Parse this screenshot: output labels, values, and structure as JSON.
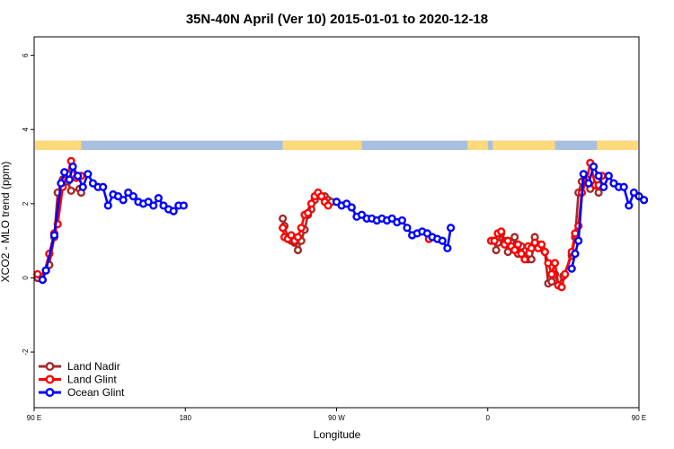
{
  "chart_data": {
    "type": "line",
    "title": "35N-40N April (Ver 10)   2015-01-01 to 2020-12-18",
    "xlabel": "Longitude",
    "ylabel": "XCO2 - MLO trend (ppm)",
    "xlim": [
      90,
      450
    ],
    "ylim": [
      -3.5,
      6.5
    ],
    "x_ticks": [
      {
        "value": 90,
        "label": "90 E"
      },
      {
        "value": 180,
        "label": "180"
      },
      {
        "value": 270,
        "label": "90 W"
      },
      {
        "value": 360,
        "label": "0"
      },
      {
        "value": 450,
        "label": "90 E"
      },
      {
        "value": 540,
        "label": "180"
      }
    ],
    "y_ticks": [
      {
        "value": -2,
        "label": "-2"
      },
      {
        "value": 0,
        "label": "0"
      },
      {
        "value": 2,
        "label": "2"
      },
      {
        "value": 4,
        "label": "4"
      },
      {
        "value": 6,
        "label": "6"
      }
    ],
    "land_ocean_strip": {
      "y_range": [
        3.45,
        3.7
      ],
      "land_color": "#ffd97a",
      "ocean_color": "#a8c0e0",
      "land_segments": [
        [
          90,
          118
        ],
        [
          100.5,
          110
        ],
        [
          238,
          285
        ],
        [
          348,
          360
        ],
        [
          363,
          400
        ],
        [
          425,
          484
        ],
        [
          450,
          486
        ]
      ]
    },
    "series": [
      {
        "name": "Land Nadir",
        "color": "#a52a2a",
        "points": [
          [
            92,
            0.0
          ],
          [
            97,
            0.2
          ],
          [
            99,
            0.35
          ],
          [
            102,
            1.1
          ],
          [
            104,
            2.3
          ],
          [
            107,
            2.65
          ],
          [
            110,
            2.6
          ],
          [
            112,
            2.35
          ],
          [
            117,
            2.4
          ],
          [
            118,
            2.3
          ],
          [
            238,
            1.6
          ],
          [
            239,
            1.4
          ],
          [
            241,
            1.1
          ],
          [
            243,
            1.0
          ],
          [
            245,
            0.95
          ],
          [
            247,
            0.75
          ],
          [
            249,
            1.0
          ],
          [
            251,
            1.3
          ],
          [
            253,
            1.7
          ],
          [
            255,
            1.85
          ],
          [
            257,
            2.1
          ],
          [
            259,
            2.25
          ],
          [
            261,
            2.2
          ],
          [
            263,
            2.2
          ],
          [
            265,
            2.1
          ],
          [
            267,
            2.05
          ],
          [
            364,
            1.0
          ],
          [
            365,
            0.75
          ],
          [
            366,
            0.95
          ],
          [
            368,
            1.2
          ],
          [
            370,
            1.0
          ],
          [
            372,
            0.7
          ],
          [
            374,
            0.95
          ],
          [
            376,
            1.1
          ],
          [
            378,
            0.65
          ],
          [
            380,
            0.85
          ],
          [
            382,
            0.55
          ],
          [
            384,
            0.5
          ],
          [
            386,
            0.5
          ],
          [
            388,
            1.1
          ],
          [
            390,
            0.9
          ],
          [
            392,
            0.8
          ],
          [
            394,
            0.7
          ],
          [
            396,
            -0.15
          ],
          [
            398,
            -0.1
          ],
          [
            400,
            0.1
          ],
          [
            402,
            -0.2
          ],
          [
            405,
            0.05
          ],
          [
            410,
            0.6
          ],
          [
            412,
            1.1
          ],
          [
            414,
            2.3
          ],
          [
            416,
            2.6
          ],
          [
            418,
            2.65
          ],
          [
            421,
            2.4
          ],
          [
            424,
            2.5
          ],
          [
            426,
            2.3
          ]
        ]
      },
      {
        "name": "Land Glint",
        "color": "#ff0000",
        "points": [
          [
            92,
            0.1
          ],
          [
            95,
            -0.05
          ],
          [
            99,
            0.65
          ],
          [
            102,
            1.2
          ],
          [
            104,
            1.45
          ],
          [
            107,
            2.45
          ],
          [
            110,
            2.8
          ],
          [
            112,
            3.15
          ],
          [
            115,
            2.7
          ],
          [
            118,
            2.75
          ],
          [
            238,
            1.35
          ],
          [
            239,
            1.1
          ],
          [
            241,
            1.05
          ],
          [
            243,
            1.15
          ],
          [
            245,
            1.0
          ],
          [
            247,
            1.1
          ],
          [
            249,
            1.35
          ],
          [
            251,
            1.7
          ],
          [
            253,
            1.75
          ],
          [
            255,
            2.0
          ],
          [
            257,
            2.2
          ],
          [
            259,
            2.3
          ],
          [
            261,
            2.2
          ],
          [
            263,
            2.05
          ],
          [
            265,
            1.95
          ],
          [
            325,
            1.05
          ],
          [
            362,
            1.0
          ],
          [
            364,
            1.0
          ],
          [
            366,
            1.2
          ],
          [
            368,
            1.25
          ],
          [
            370,
            0.9
          ],
          [
            372,
            1.0
          ],
          [
            374,
            0.85
          ],
          [
            376,
            0.75
          ],
          [
            378,
            0.9
          ],
          [
            380,
            0.65
          ],
          [
            382,
            0.5
          ],
          [
            384,
            0.85
          ],
          [
            386,
            0.8
          ],
          [
            388,
            0.95
          ],
          [
            390,
            0.8
          ],
          [
            392,
            0.9
          ],
          [
            394,
            0.7
          ],
          [
            396,
            0.4
          ],
          [
            398,
            0.1
          ],
          [
            400,
            0.4
          ],
          [
            402,
            -0.2
          ],
          [
            404,
            -0.25
          ],
          [
            406,
            0.1
          ],
          [
            410,
            0.7
          ],
          [
            412,
            1.2
          ],
          [
            414,
            1.4
          ],
          [
            416,
            2.3
          ],
          [
            419,
            2.65
          ],
          [
            421,
            3.1
          ],
          [
            424,
            2.5
          ],
          [
            426,
            2.5
          ],
          [
            428,
            2.75
          ]
        ]
      },
      {
        "name": "Ocean Glint",
        "color": "#0000ff",
        "points": [
          [
            95,
            -0.05
          ],
          [
            97,
            0.2
          ],
          [
            102,
            1.15
          ],
          [
            106,
            2.55
          ],
          [
            108,
            2.85
          ],
          [
            111,
            2.65
          ],
          [
            113,
            3.0
          ],
          [
            116,
            2.75
          ],
          [
            119,
            2.45
          ],
          [
            122,
            2.8
          ],
          [
            125,
            2.55
          ],
          [
            128,
            2.45
          ],
          [
            131,
            2.45
          ],
          [
            134,
            1.95
          ],
          [
            137,
            2.25
          ],
          [
            140,
            2.2
          ],
          [
            143,
            2.1
          ],
          [
            146,
            2.3
          ],
          [
            149,
            2.2
          ],
          [
            152,
            2.05
          ],
          [
            155,
            2.0
          ],
          [
            158,
            2.05
          ],
          [
            161,
            1.95
          ],
          [
            164,
            2.15
          ],
          [
            167,
            1.95
          ],
          [
            170,
            1.85
          ],
          [
            173,
            1.8
          ],
          [
            176,
            1.95
          ],
          [
            179,
            1.95
          ],
          [
            270,
            2.05
          ],
          [
            273,
            1.95
          ],
          [
            276,
            2.0
          ],
          [
            279,
            1.9
          ],
          [
            282,
            1.65
          ],
          [
            285,
            1.7
          ],
          [
            288,
            1.6
          ],
          [
            291,
            1.6
          ],
          [
            294,
            1.55
          ],
          [
            297,
            1.6
          ],
          [
            300,
            1.55
          ],
          [
            303,
            1.6
          ],
          [
            306,
            1.5
          ],
          [
            309,
            1.55
          ],
          [
            312,
            1.35
          ],
          [
            315,
            1.15
          ],
          [
            318,
            1.2
          ],
          [
            321,
            1.25
          ],
          [
            324,
            1.2
          ],
          [
            327,
            1.1
          ],
          [
            330,
            1.05
          ],
          [
            333,
            1.0
          ],
          [
            336,
            0.8
          ],
          [
            338,
            1.35
          ],
          [
            410,
            0.25
          ],
          [
            412,
            0.65
          ],
          [
            414,
            1.0
          ],
          [
            417,
            2.8
          ],
          [
            420,
            2.55
          ],
          [
            423,
            3.0
          ],
          [
            426,
            2.75
          ],
          [
            429,
            2.45
          ],
          [
            432,
            2.75
          ],
          [
            435,
            2.55
          ],
          [
            438,
            2.45
          ],
          [
            441,
            2.45
          ],
          [
            444,
            1.95
          ],
          [
            447,
            2.3
          ],
          [
            450,
            2.2
          ],
          [
            453,
            2.1
          ]
        ]
      }
    ],
    "legend": {
      "position": "bottom-left",
      "entries": [
        "Land Nadir",
        "Land Glint",
        "Ocean Glint"
      ]
    },
    "grid": false
  }
}
